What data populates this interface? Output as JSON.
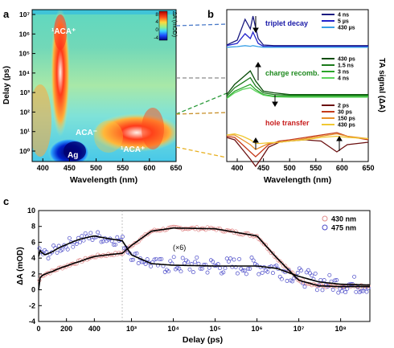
{
  "panels": {
    "a": {
      "letter": "a",
      "ylabel": "Delay (ps)",
      "xlabel": "Wavelength (nm)",
      "xticks": [
        "400",
        "450",
        "500",
        "550",
        "600",
        "650"
      ],
      "yticks": [
        "10⁰",
        "10¹",
        "10²",
        "10³",
        "10⁴",
        "10⁵",
        "10⁶",
        "10⁷"
      ],
      "colorbar": {
        "label": "ΔA (mOD)",
        "ticks": [
          "8",
          "4",
          "0",
          "-4"
        ]
      },
      "annotations": [
        "¹ACA⁺",
        "ACA⁻",
        "Ag",
        "¹ACA⁺"
      ]
    },
    "b": {
      "letter": "b",
      "xlabel": "Wavelength (nm)",
      "ylabel": "TA signal (ΔA)",
      "xticks": [
        "400",
        "450",
        "500",
        "550",
        "600",
        "650"
      ],
      "groups": [
        {
          "title": "triplet decay",
          "title_color": "#1a1aa8",
          "legend": [
            {
              "label": "4 ns",
              "color": "#1a1a80"
            },
            {
              "label": "5 µs",
              "color": "#2222cc"
            },
            {
              "label": "430 µs",
              "color": "#3aa0e6"
            }
          ]
        },
        {
          "title": "charge recomb.",
          "title_color": "#1f8a1f",
          "legend": [
            {
              "label": "430 ps",
              "color": "#0a4d0a"
            },
            {
              "label": "1.5 ns",
              "color": "#1a7a1a"
            },
            {
              "label": "3 ns",
              "color": "#2aa52a"
            },
            {
              "label": "4 ns",
              "color": "#5cd45c"
            }
          ]
        },
        {
          "title": "hole transfer",
          "title_color": "#c81e1e",
          "legend": [
            {
              "label": "2 ps",
              "color": "#6b1010"
            },
            {
              "label": "30 ps",
              "color": "#c43a1a"
            },
            {
              "label": "150 ps",
              "color": "#e8902a"
            },
            {
              "label": "430 ps",
              "color": "#f0c832"
            }
          ]
        }
      ]
    },
    "c": {
      "letter": "c",
      "ylabel": "ΔA (mOD)",
      "xlabel": "Delay (ps)",
      "yticks": [
        "-4",
        "-2",
        "0",
        "2",
        "4",
        "6",
        "8",
        "10"
      ],
      "xticks_linear": [
        "0",
        "200",
        "400"
      ],
      "xticks_log": [
        "10³",
        "10⁴",
        "10⁵",
        "10⁶",
        "10⁷",
        "10⁸"
      ],
      "annotation": "(×6)",
      "legend": [
        {
          "label": "430 nm",
          "color": "#e08a8a"
        },
        {
          "label": "475 nm",
          "color": "#4a4ac8"
        }
      ]
    }
  },
  "chart_data": [
    {
      "type": "heatmap",
      "panel": "a",
      "xlabel": "Wavelength (nm)",
      "ylabel": "Delay (ps)",
      "xlim": [
        380,
        650
      ],
      "ylim": [
        0.3,
        20000000
      ],
      "y_scale": "log",
      "colorbar_range": [
        -4,
        8
      ],
      "features": [
        {
          "label": "¹ACA⁺",
          "wavelength_nm": [
            425,
            440
          ],
          "delay_ps": [
            100,
            10000000
          ],
          "sign": "positive"
        },
        {
          "label": "ACA⁻",
          "wavelength_nm": [
            470,
            480
          ],
          "delay_ps": [
            1,
            100
          ],
          "sign": "weak"
        },
        {
          "label": "Ag",
          "wavelength_nm": [
            430,
            470
          ],
          "delay_ps": [
            0.4,
            3
          ],
          "sign": "negative"
        },
        {
          "label": "¹ACA⁺",
          "wavelength_nm": [
            510,
            600
          ],
          "delay_ps": [
            0.5,
            100
          ],
          "sign": "positive"
        }
      ]
    },
    {
      "type": "line",
      "panel": "b",
      "xlabel": "Wavelength (nm)",
      "ylabel": "TA signal (ΔA)",
      "xlim": [
        380,
        650
      ],
      "series": [
        {
          "name": "4 ns",
          "group": "triplet decay",
          "x": [
            380,
            400,
            415,
            425,
            430,
            440,
            450,
            470,
            500,
            550,
            600,
            650
          ],
          "y": [
            0.1,
            0.25,
            0.9,
            0.6,
            1.0,
            0.3,
            0.1,
            0.08,
            0.08,
            0.08,
            0.08,
            0.08
          ]
        },
        {
          "name": "5 µs",
          "group": "triplet decay",
          "x": [
            380,
            400,
            415,
            425,
            430,
            440,
            450,
            470,
            500,
            550,
            600,
            650
          ],
          "y": [
            0.08,
            0.15,
            0.45,
            0.3,
            0.5,
            0.15,
            0.06,
            0.05,
            0.05,
            0.05,
            0.05,
            0.05
          ]
        },
        {
          "name": "430 µs",
          "group": "triplet decay",
          "x": [
            380,
            400,
            415,
            425,
            430,
            440,
            450,
            470,
            500,
            550,
            600,
            650
          ],
          "y": [
            0.03,
            0.05,
            0.08,
            0.06,
            0.08,
            0.05,
            0.03,
            0.03,
            0.03,
            0.03,
            0.03,
            0.03
          ]
        },
        {
          "name": "430 ps",
          "group": "charge recomb.",
          "x": [
            380,
            395,
            410,
            425,
            435,
            450,
            470,
            500,
            550,
            600,
            650
          ],
          "y": [
            0.2,
            0.5,
            0.7,
            0.9,
            0.6,
            0.3,
            0.25,
            0.2,
            0.2,
            0.2,
            0.2
          ]
        },
        {
          "name": "1.5 ns",
          "group": "charge recomb.",
          "x": [
            380,
            395,
            410,
            425,
            435,
            450,
            470,
            500,
            550,
            600,
            650
          ],
          "y": [
            0.15,
            0.4,
            0.55,
            0.7,
            0.45,
            0.25,
            0.2,
            0.18,
            0.18,
            0.18,
            0.18
          ]
        },
        {
          "name": "3 ns",
          "group": "charge recomb.",
          "x": [
            380,
            395,
            410,
            425,
            435,
            450,
            470,
            500,
            550,
            600,
            650
          ],
          "y": [
            0.1,
            0.3,
            0.4,
            0.5,
            0.35,
            0.2,
            0.15,
            0.15,
            0.15,
            0.15,
            0.15
          ]
        },
        {
          "name": "4 ns",
          "group": "charge recomb.",
          "x": [
            380,
            395,
            410,
            425,
            435,
            450,
            470,
            500,
            550,
            600,
            650
          ],
          "y": [
            0.08,
            0.25,
            0.35,
            0.4,
            0.3,
            0.18,
            0.13,
            0.12,
            0.12,
            0.12,
            0.12
          ]
        },
        {
          "name": "2 ps",
          "group": "hole transfer",
          "x": [
            380,
            395,
            410,
            425,
            435,
            445,
            460,
            480,
            500,
            530,
            560,
            590,
            610,
            650
          ],
          "y": [
            0.3,
            0.2,
            -0.2,
            -0.6,
            -0.9,
            -0.6,
            -0.1,
            0.1,
            0.15,
            0.2,
            0.15,
            -0.3,
            0.0,
            0.1
          ]
        },
        {
          "name": "30 ps",
          "group": "hole transfer",
          "x": [
            380,
            395,
            410,
            425,
            435,
            445,
            460,
            480,
            500,
            530,
            560,
            590,
            610,
            650
          ],
          "y": [
            0.35,
            0.3,
            0.0,
            -0.3,
            -0.5,
            -0.3,
            0.0,
            0.15,
            0.2,
            0.3,
            0.4,
            0.5,
            0.35,
            0.2
          ]
        },
        {
          "name": "150 ps",
          "group": "hole transfer",
          "x": [
            380,
            395,
            410,
            425,
            435,
            445,
            460,
            480,
            500,
            530,
            560,
            590,
            610,
            650
          ],
          "y": [
            0.4,
            0.4,
            0.2,
            0.0,
            -0.2,
            -0.1,
            0.05,
            0.1,
            0.15,
            0.25,
            0.35,
            0.45,
            0.35,
            0.25
          ]
        },
        {
          "name": "430 ps",
          "group": "hole transfer",
          "x": [
            380,
            395,
            410,
            425,
            435,
            445,
            460,
            480,
            500,
            530,
            560,
            590,
            610,
            650
          ],
          "y": [
            0.4,
            0.45,
            0.35,
            0.2,
            0.05,
            0.05,
            0.08,
            0.1,
            0.15,
            0.2,
            0.3,
            0.35,
            0.3,
            0.25
          ]
        }
      ]
    },
    {
      "type": "scatter",
      "panel": "c",
      "xlabel": "Delay (ps)",
      "ylabel": "ΔA (mOD)",
      "ylim": [
        -4,
        10
      ],
      "x_axis": "linear from 0 to 600 ps, then logarithmic to 5×10⁸ ps",
      "series": [
        {
          "name": "430 nm",
          "fit_x": [
            0,
            10,
            50,
            100,
            200,
            300,
            400,
            600,
            1000,
            3000,
            10000,
            100000,
            1000000,
            3000000,
            10000000,
            30000000,
            100000000,
            500000000
          ],
          "fit_y": [
            0,
            1.5,
            2.0,
            2.3,
            3.0,
            3.6,
            4.2,
            4.6,
            5.6,
            7.4,
            7.8,
            7.7,
            6.8,
            4.0,
            1.2,
            0.5,
            0.4,
            0.4
          ]
        },
        {
          "name": "475 nm",
          "fit_x": [
            0,
            10,
            50,
            100,
            200,
            300,
            400,
            600,
            1000,
            3000,
            10000,
            100000,
            1000000,
            3000000,
            10000000,
            30000000,
            100000000,
            500000000
          ],
          "fit_y": [
            4.2,
            5.0,
            4.4,
            4.8,
            5.7,
            6.4,
            6.8,
            6.2,
            4.4,
            3.3,
            3.1,
            3.0,
            3.0,
            2.7,
            1.7,
            1.0,
            0.7,
            0.6
          ]
        }
      ]
    }
  ]
}
